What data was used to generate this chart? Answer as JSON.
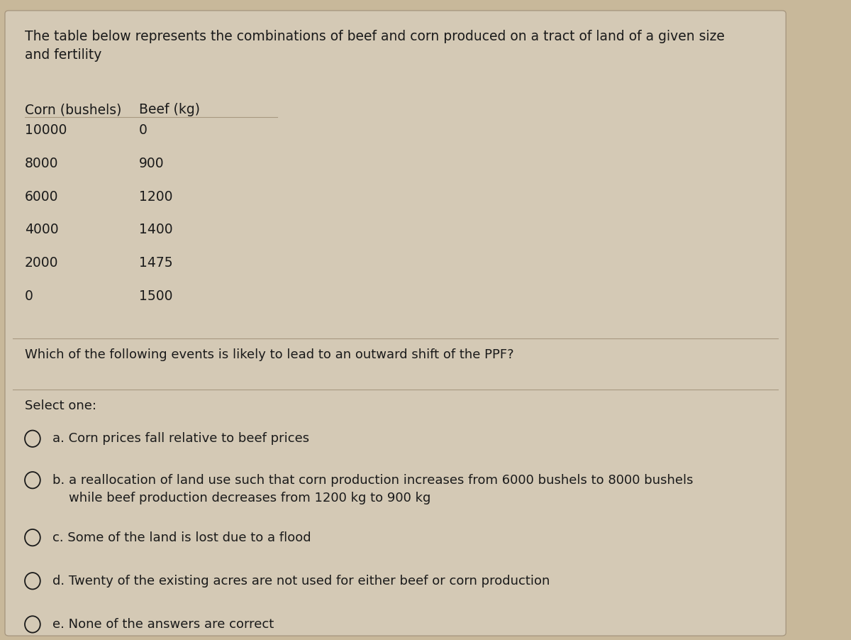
{
  "background_color": "#c8b89a",
  "card_color": "#d4c9b5",
  "title_text": "The table below represents the combinations of beef and corn produced on a tract of land of a given size\nand fertility",
  "col_header": [
    "Corn (bushels)",
    "Beef (kg)"
  ],
  "table_data": [
    [
      "10000",
      "0"
    ],
    [
      "8000",
      "900"
    ],
    [
      "6000",
      "1200"
    ],
    [
      "4000",
      "1400"
    ],
    [
      "2000",
      "1475"
    ],
    [
      "0",
      "1500"
    ]
  ],
  "question_text": "Which of the following events is likely to lead to an outward shift of the PPF?",
  "select_text": "Select one:",
  "options": [
    "a. Corn prices fall relative to beef prices",
    "b. a reallocation of land use such that corn production increases from 6000 bushels to 8000 bushels\n    while beef production decreases from 1200 kg to 900 kg",
    "c. Some of the land is lost due to a flood",
    "d. Twenty of the existing acres are not used for either beef or corn production",
    "e. None of the answers are correct"
  ],
  "font_color": "#1a1a1a",
  "font_size_title": 13.5,
  "font_size_body": 13.0,
  "font_size_table": 13.5,
  "line_color": "#a89880"
}
